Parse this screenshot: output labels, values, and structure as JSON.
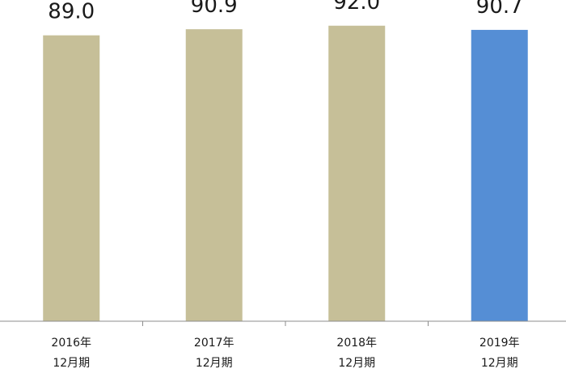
{
  "chart_data": {
    "type": "bar",
    "categories": [
      [
        "2016年",
        "12月期"
      ],
      [
        "2017年",
        "12月期"
      ],
      [
        "2018年",
        "12月期"
      ],
      [
        "2019年",
        "12月期"
      ]
    ],
    "values": [
      89.0,
      90.9,
      92.0,
      90.7
    ],
    "value_labels": [
      "89.0",
      "90.9",
      "92.0",
      "90.7"
    ],
    "title": "",
    "xlabel": "",
    "ylabel": "",
    "ylim": [
      0,
      100
    ],
    "grid": false,
    "colors": {
      "default_bar": "#c6bf98",
      "highlight_bar": "#558ed5",
      "axis": "#8c8c8c"
    },
    "highlight_index": 3
  }
}
